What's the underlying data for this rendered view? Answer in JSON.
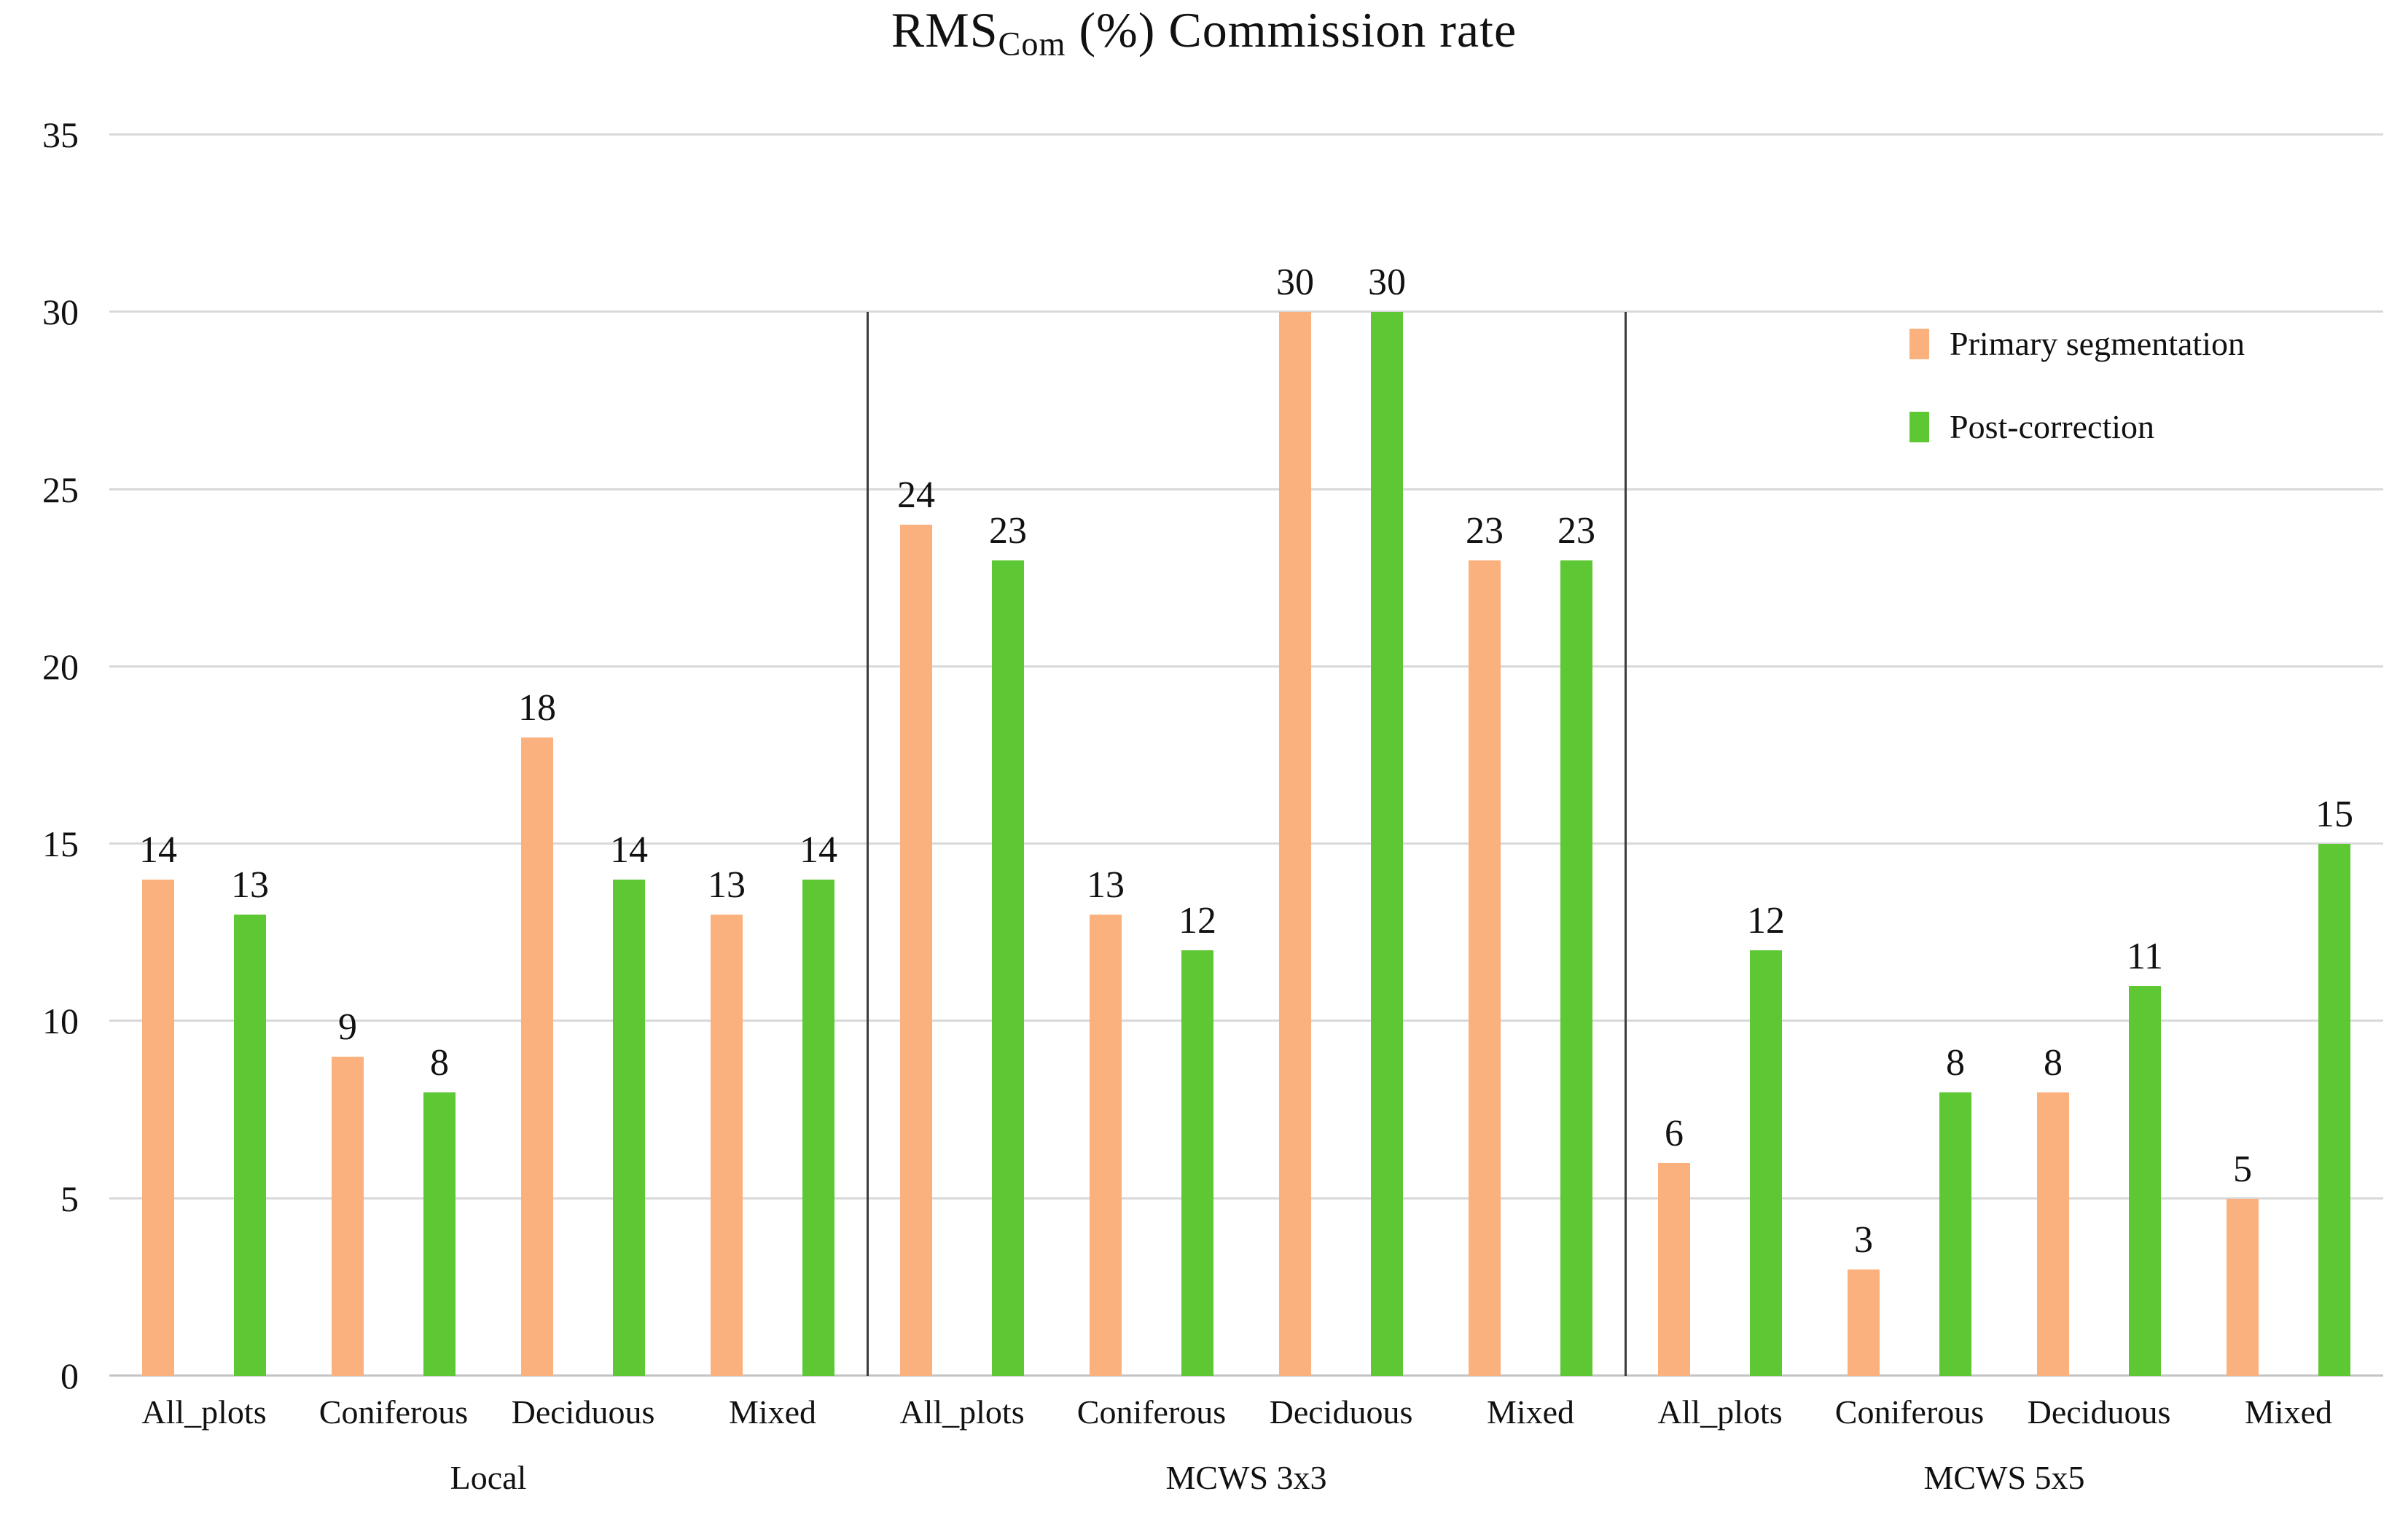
{
  "title": {
    "prefix": "RMS",
    "subscript": "Com",
    "suffix": " (%) Commission rate"
  },
  "legend": [
    {
      "label": "Primary segmentation",
      "color": "#FBB17E"
    },
    {
      "label": "Post-correction",
      "color": "#5EC834"
    }
  ],
  "chart_data": {
    "type": "bar",
    "title": "RMS_Com (%) Commission rate",
    "xlabel": "",
    "ylabel": "",
    "ylim": [
      0,
      35
    ],
    "yticks": [
      0,
      5,
      10,
      15,
      20,
      25,
      30,
      35
    ],
    "grid": true,
    "legend_position": "top-right",
    "colors": {
      "primary": "#FBB17E",
      "post": "#5EC834"
    },
    "gridline_color": "#d9d9d9",
    "groups": [
      {
        "label": "Local",
        "categories": [
          "All_plots",
          "Coniferous",
          "Deciduous",
          "Mixed"
        ],
        "series": [
          {
            "name": "Primary segmentation",
            "values": [
              14,
              9,
              18,
              13
            ]
          },
          {
            "name": "Post-correction",
            "values": [
              13,
              8,
              14,
              14
            ]
          }
        ]
      },
      {
        "label": "MCWS 3x3",
        "categories": [
          "All_plots",
          "Coniferous",
          "Deciduous",
          "Mixed"
        ],
        "series": [
          {
            "name": "Primary segmentation",
            "values": [
              24,
              13,
              30,
              23
            ]
          },
          {
            "name": "Post-correction",
            "values": [
              23,
              12,
              30,
              23
            ]
          }
        ]
      },
      {
        "label": "MCWS 5x5",
        "categories": [
          "All_plots",
          "Coniferous",
          "Deciduous",
          "Mixed"
        ],
        "series": [
          {
            "name": "Primary segmentation",
            "values": [
              6,
              3,
              8,
              5
            ]
          },
          {
            "name": "Post-correction",
            "values": [
              12,
              8,
              11,
              15
            ]
          }
        ]
      }
    ]
  }
}
